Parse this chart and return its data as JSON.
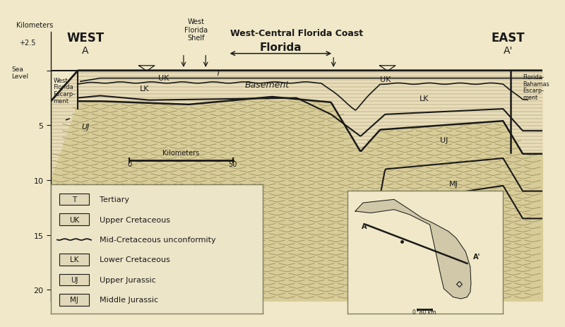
{
  "bg_color": "#f0e8c8",
  "fig_width": 8.0,
  "fig_height": 4.64,
  "title_top": "West-Central Florida Coast",
  "label_west": "WEST",
  "label_east": "EAST",
  "label_a": "A",
  "label_a_prime": "A'",
  "ylabel_km": "Kilometers",
  "ylabel_top": "+2.5",
  "ylabel_sealevel": "Sea\nLevel",
  "yaxis_ticks": [
    0,
    -5,
    -10,
    -15,
    -20
  ],
  "west_escarpment": "West\nFlorida\nEscarp-\nment",
  "east_escarpment": "Florida-\nBahamas\nEscarp-\nment",
  "florida_label": "Florida",
  "west_florida_shelf": "West\nFlorida\nShelf",
  "basement_label": "Basement",
  "legend_items": [
    {
      "symbol": "T",
      "label": "Tertiary",
      "box": true
    },
    {
      "symbol": "UK",
      "label": "Upper Cretaceous",
      "box": true
    },
    {
      "symbol": "~",
      "label": "Mid-Cretaceous unconformity",
      "box": false
    },
    {
      "symbol": "LK",
      "label": "Lower Cretaceous",
      "box": true
    },
    {
      "symbol": "UJ",
      "label": "Upper Jurassic",
      "box": true
    },
    {
      "symbol": "MJ",
      "label": "Middle Jurassic",
      "box": true
    }
  ],
  "line_color": "#1a1a1a",
  "sediment_color": "#e8ddb8",
  "basement_color": "#d8cc98",
  "brick_line_color": "#9a8f70",
  "vmark_color": "#9a9060",
  "scale_bar_label": "Kilometers",
  "scale_bar_0": "0",
  "scale_bar_50": "50"
}
